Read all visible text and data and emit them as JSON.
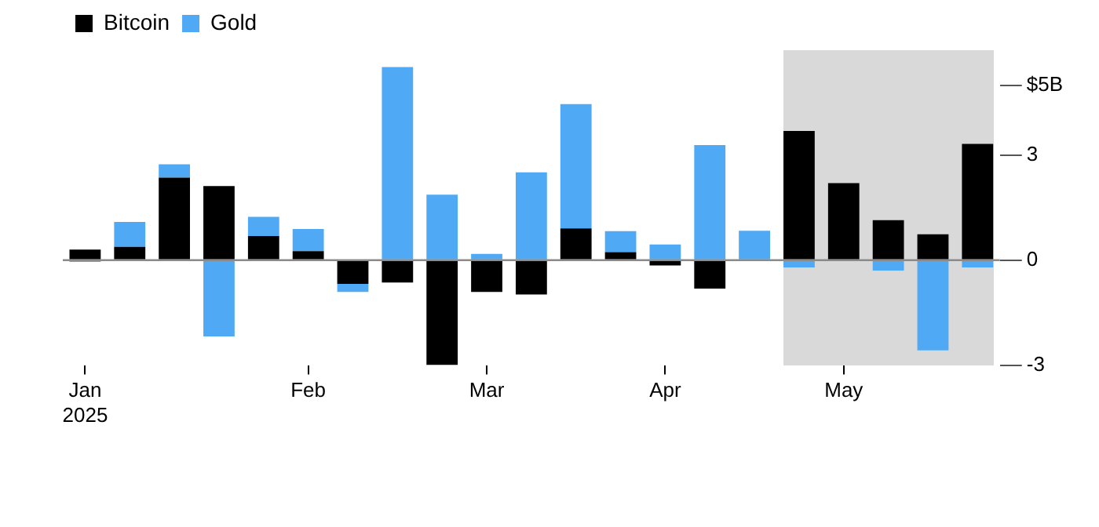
{
  "chart_data": {
    "type": "bar",
    "stacked": true,
    "categories": [
      "Jan\n2025",
      null,
      null,
      null,
      null,
      "Feb",
      null,
      null,
      null,
      "Mar",
      null,
      null,
      null,
      "Apr",
      null,
      null,
      null,
      "May",
      null,
      null,
      null
    ],
    "ylim": [
      -3,
      6
    ],
    "yticks": [
      -3,
      0,
      3,
      {
        "value": 5,
        "label": "$5B"
      }
    ],
    "series": [
      {
        "name": "Bitcoin",
        "color": "#000000",
        "values": [
          0.3,
          0.38,
          2.36,
          2.12,
          0.69,
          0.26,
          -0.68,
          -0.64,
          -3,
          -0.91,
          -0.98,
          0.91,
          0.23,
          -0.15,
          -0.81,
          0,
          3.69,
          2.2,
          1.14,
          0.74,
          3.32
        ]
      },
      {
        "name": "Gold",
        "color": "#4fa9f5",
        "values": [
          -0.05,
          0.71,
          0.38,
          -2.18,
          0.55,
          0.63,
          -0.23,
          5.52,
          1.87,
          0.18,
          2.51,
          3.55,
          0.6,
          0.45,
          3.29,
          0.84,
          -0.21,
          0,
          -0.3,
          -2.58,
          -0.21
        ]
      }
    ],
    "legend": "top left"
  }
}
